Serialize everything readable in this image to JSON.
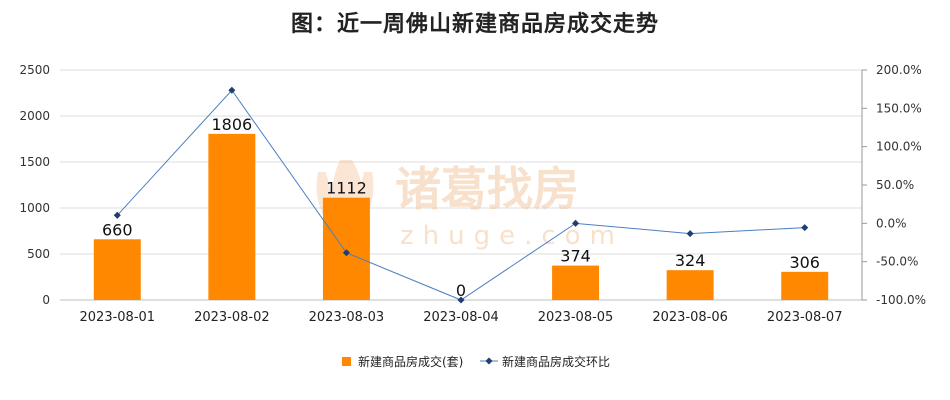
{
  "chart_data": {
    "type": "bar+line",
    "title": "图：近一周佛山新建商品房成交走势",
    "categories": [
      "2023-08-01",
      "2023-08-02",
      "2023-08-03",
      "2023-08-04",
      "2023-08-05",
      "2023-08-06",
      "2023-08-07"
    ],
    "series": [
      {
        "name": "新建商品房成交(套)",
        "type": "bar",
        "axis": "left",
        "values": [
          660,
          1806,
          1112,
          0,
          374,
          324,
          306
        ],
        "color": "#ff8800"
      },
      {
        "name": "新建商品房成交环比",
        "type": "line",
        "axis": "right",
        "values": [
          10.5,
          173.6,
          -38.4,
          -100.0,
          0.0,
          -13.4,
          -5.6
        ],
        "color": "#4a7fc1"
      }
    ],
    "y_left": {
      "min": 0,
      "max": 2500,
      "ticks": [
        "0",
        "500",
        "1000",
        "1500",
        "2000",
        "2500"
      ]
    },
    "y_right": {
      "min": -100,
      "max": 200,
      "ticks": [
        "-100.0%",
        "-50.0%",
        "0.0%",
        "50.0%",
        "100.0%",
        "150.0%",
        "200.0%"
      ]
    },
    "grid": true,
    "legend_position": "bottom-center"
  },
  "watermark": {
    "brand": "诸葛找房",
    "domain": "zhuge.com"
  }
}
